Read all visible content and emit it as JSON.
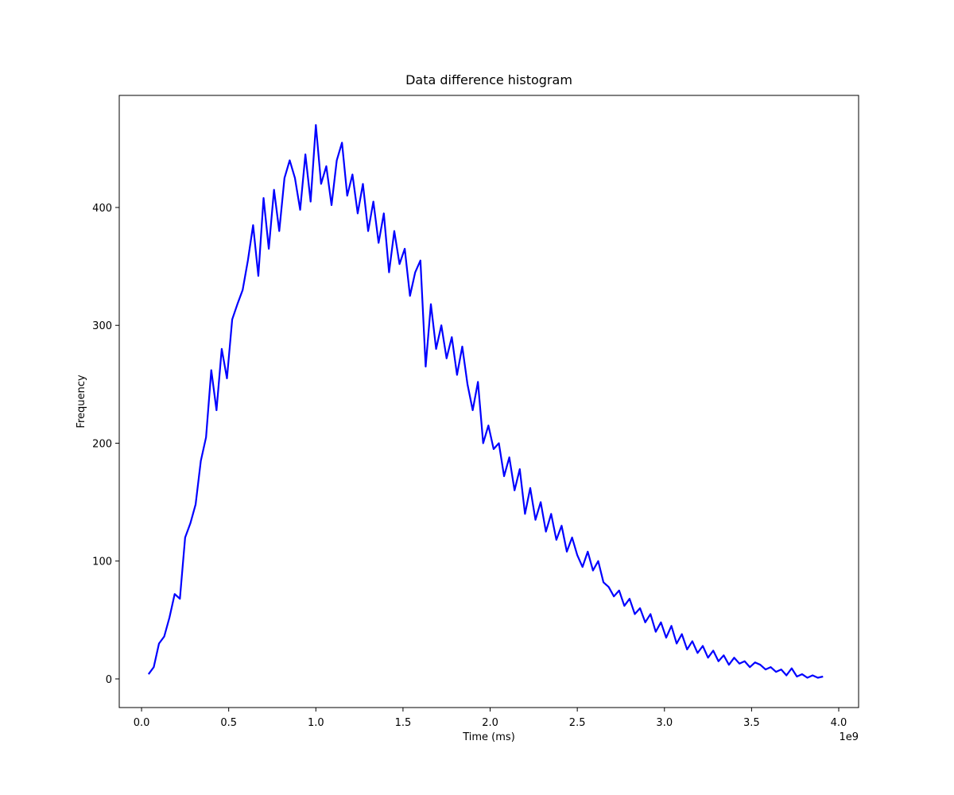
{
  "chart_data": {
    "type": "line",
    "title": "Data difference histogram",
    "x_label": "Time (ms)",
    "y_label": "Frequency",
    "x_offset_label": "1e9",
    "color": "#0000ff",
    "xlim": [
      -0.128,
      4.114
    ],
    "ylim": [
      -24.3,
      495.1
    ],
    "xticks": [
      {
        "value": 0,
        "label": "0.0"
      },
      0.5,
      {
        "value": 1,
        "label": "1.0"
      },
      1.5,
      {
        "value": 2,
        "label": "2.0"
      },
      2.5,
      {
        "value": 3,
        "label": "3.0"
      },
      3.5,
      {
        "value": 4,
        "label": "4.0"
      }
    ],
    "yticks": [
      0,
      100,
      200,
      300,
      400
    ],
    "x": [
      0.04,
      0.07,
      0.1,
      0.13,
      0.16,
      0.19,
      0.22,
      0.25,
      0.28,
      0.31,
      0.34,
      0.37,
      0.4,
      0.43,
      0.46,
      0.49,
      0.52,
      0.55,
      0.58,
      0.61,
      0.64,
      0.67,
      0.7,
      0.73,
      0.76,
      0.79,
      0.82,
      0.85,
      0.88,
      0.91,
      0.94,
      0.97,
      1.0,
      1.03,
      1.06,
      1.09,
      1.12,
      1.15,
      1.18,
      1.21,
      1.24,
      1.27,
      1.3,
      1.33,
      1.36,
      1.39,
      1.42,
      1.45,
      1.48,
      1.51,
      1.54,
      1.57,
      1.6,
      1.63,
      1.66,
      1.69,
      1.72,
      1.75,
      1.78,
      1.81,
      1.84,
      1.87,
      1.9,
      1.93,
      1.96,
      1.99,
      2.02,
      2.05,
      2.08,
      2.11,
      2.14,
      2.17,
      2.2,
      2.23,
      2.26,
      2.29,
      2.32,
      2.35,
      2.38,
      2.41,
      2.44,
      2.47,
      2.5,
      2.53,
      2.56,
      2.59,
      2.62,
      2.65,
      2.68,
      2.71,
      2.74,
      2.77,
      2.8,
      2.83,
      2.86,
      2.89,
      2.92,
      2.95,
      2.98,
      3.01,
      3.04,
      3.07,
      3.1,
      3.13,
      3.16,
      3.19,
      3.22,
      3.25,
      3.28,
      3.31,
      3.34,
      3.37,
      3.4,
      3.43,
      3.46,
      3.49,
      3.52,
      3.55,
      3.58,
      3.61,
      3.64,
      3.67,
      3.7,
      3.73,
      3.76,
      3.79,
      3.82,
      3.85,
      3.88,
      3.91
    ],
    "values": [
      4,
      10,
      30,
      36,
      52,
      72,
      68,
      120,
      132,
      148,
      185,
      205,
      262,
      228,
      280,
      255,
      305,
      318,
      330,
      355,
      385,
      342,
      408,
      365,
      415,
      380,
      425,
      440,
      425,
      398,
      445,
      405,
      470,
      420,
      435,
      402,
      440,
      455,
      410,
      428,
      395,
      420,
      380,
      405,
      370,
      395,
      345,
      380,
      352,
      365,
      325,
      345,
      355,
      265,
      318,
      280,
      300,
      272,
      290,
      258,
      282,
      250,
      228,
      252,
      200,
      215,
      195,
      200,
      172,
      188,
      160,
      178,
      140,
      162,
      135,
      150,
      125,
      140,
      118,
      130,
      108,
      120,
      105,
      95,
      108,
      92,
      100,
      82,
      78,
      70,
      75,
      62,
      68,
      55,
      60,
      48,
      55,
      40,
      48,
      35,
      45,
      30,
      38,
      25,
      32,
      22,
      28,
      18,
      24,
      15,
      20,
      12,
      18,
      13,
      15,
      10,
      14,
      12,
      8,
      10,
      6,
      8,
      3,
      9,
      2,
      4,
      1,
      3,
      1,
      2
    ]
  }
}
